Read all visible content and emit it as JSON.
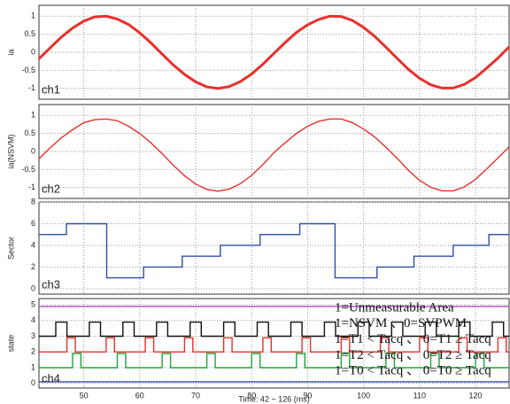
{
  "chart_data": [
    {
      "type": "line",
      "ylabel": "ia",
      "annotation": "ch1",
      "xlim": [
        42,
        126
      ],
      "xticks": [
        50,
        60,
        70,
        80,
        90,
        100,
        110,
        120
      ],
      "ylim": [
        -1.3,
        1.3
      ],
      "yticks": [
        -1,
        -0.5,
        0,
        0.5,
        1
      ],
      "grid": true,
      "x": [
        42,
        44,
        46,
        48,
        50,
        52,
        54,
        56,
        58,
        60,
        62,
        64,
        66,
        68,
        70,
        72,
        74,
        76,
        78,
        80,
        82,
        84,
        86,
        88,
        90,
        92,
        94,
        96,
        98,
        100,
        102,
        104,
        106,
        108,
        110,
        112,
        114,
        116,
        118,
        120,
        122,
        124,
        126
      ],
      "series": [
        {
          "color": "#e8302c",
          "values": [
            -0.18,
            0.12,
            0.42,
            0.67,
            0.86,
            0.98,
            1.0,
            0.92,
            0.77,
            0.54,
            0.26,
            -0.05,
            -0.35,
            -0.61,
            -0.82,
            -0.96,
            -1.0,
            -0.95,
            -0.81,
            -0.6,
            -0.33,
            -0.03,
            0.27,
            0.55,
            0.76,
            0.91,
            1.0,
            0.99,
            0.88,
            0.69,
            0.44,
            0.14,
            -0.17,
            -0.47,
            -0.72,
            -0.9,
            -0.99,
            -0.99,
            -0.89,
            -0.7,
            -0.44,
            -0.16,
            0.15
          ]
        }
      ]
    },
    {
      "type": "line",
      "ylabel": "ia(NSVM)",
      "annotation": "ch2",
      "xlim": [
        42,
        126
      ],
      "xticks": [
        50,
        60,
        70,
        80,
        90,
        100,
        110,
        120
      ],
      "ylim": [
        -1.3,
        1.3
      ],
      "yticks": [
        -1,
        -0.5,
        0,
        0.5,
        1
      ],
      "grid": true,
      "x": [
        42,
        44,
        46,
        48,
        50,
        52,
        54,
        56,
        58,
        60,
        62,
        64,
        66,
        68,
        70,
        72,
        74,
        76,
        78,
        80,
        82,
        84,
        86,
        88,
        90,
        92,
        94,
        96,
        98,
        100,
        102,
        104,
        106,
        108,
        110,
        112,
        114,
        116,
        118,
        120,
        122,
        124,
        126
      ],
      "series": [
        {
          "color": "#e8302c",
          "values": [
            -0.2,
            0.1,
            0.38,
            0.6,
            0.8,
            0.88,
            0.9,
            0.85,
            0.7,
            0.5,
            0.24,
            -0.06,
            -0.38,
            -0.67,
            -0.9,
            -1.05,
            -1.1,
            -1.04,
            -0.89,
            -0.66,
            -0.36,
            -0.03,
            0.24,
            0.5,
            0.7,
            0.84,
            0.9,
            0.9,
            0.8,
            0.62,
            0.4,
            0.12,
            -0.19,
            -0.52,
            -0.8,
            -0.99,
            -1.09,
            -1.09,
            -0.98,
            -0.77,
            -0.48,
            -0.18,
            0.13
          ]
        }
      ]
    },
    {
      "type": "line",
      "ylabel": "Sector",
      "annotation": "ch3",
      "xlim": [
        42,
        126
      ],
      "xticks": [
        50,
        60,
        70,
        80,
        90,
        100,
        110,
        120
      ],
      "ylim": [
        -0.5,
        8
      ],
      "yticks": [
        0,
        2,
        4,
        6,
        8
      ],
      "grid": true,
      "x": [
        42,
        46.9,
        46.9,
        54.1,
        54.1,
        60.7,
        60.7,
        67.6,
        67.6,
        74.4,
        74.4,
        81.5,
        81.5,
        88.6,
        88.6,
        94.9,
        94.9,
        102.4,
        102.4,
        109,
        109,
        116,
        116,
        122.4,
        122.4,
        126
      ],
      "series": [
        {
          "color": "#2f4fa8",
          "values": [
            5,
            5,
            6,
            6,
            1,
            1,
            2,
            2,
            3,
            3,
            4,
            4,
            5,
            5,
            6,
            6,
            1,
            1,
            2,
            2,
            3,
            3,
            4,
            4,
            5,
            5
          ]
        }
      ]
    },
    {
      "type": "line",
      "ylabel": "state",
      "annotation": "ch4",
      "xlim": [
        42,
        126
      ],
      "xticks": [
        50,
        60,
        70,
        80,
        90,
        100,
        110,
        120
      ],
      "ylim": [
        -0.3,
        5.4
      ],
      "yticks": [
        0,
        1,
        2,
        3,
        4,
        5
      ],
      "grid": true,
      "xlabel": "Time: 42 ~ 126 (ms)",
      "notes": [
        "1=Unmeasurable Area",
        "1=NSVM 、0=SVPWM",
        "1=T1 < Tacq 、 0=T1 ≥ Tacq",
        "1=T2 < Tacq 、 0=T2 ≥ Tacq",
        "1=T0 < Tacq 、 0=T0 ≥ Tacq"
      ],
      "series": [
        {
          "color": "#b14fc4",
          "x": [
            42,
            126
          ],
          "values": [
            4.9,
            4.9
          ]
        },
        {
          "color": "#111111",
          "x": [
            42,
            45,
            45,
            47,
            47,
            51,
            51,
            53,
            53,
            57,
            57,
            59,
            59,
            63,
            63,
            65,
            65,
            69,
            69,
            71,
            71,
            75,
            75,
            77,
            77,
            81,
            81,
            83,
            83,
            87,
            87,
            89,
            89,
            93,
            93,
            95,
            95,
            99,
            99,
            101,
            101,
            105,
            105,
            107,
            107,
            111,
            111,
            113,
            113,
            117,
            117,
            119,
            119,
            123,
            123,
            125,
            125,
            126
          ],
          "values": [
            3,
            3,
            3.9,
            3.9,
            3,
            3,
            3.9,
            3.9,
            3,
            3,
            3.9,
            3.9,
            3,
            3,
            3.9,
            3.9,
            3,
            3,
            3.9,
            3.9,
            3,
            3,
            3.9,
            3.9,
            3,
            3,
            3.9,
            3.9,
            3,
            3,
            3.9,
            3.9,
            3,
            3,
            3.9,
            3.9,
            3,
            3,
            3.9,
            3.9,
            3,
            3,
            3.9,
            3.9,
            3,
            3,
            3.9,
            3.9,
            3,
            3,
            3.9,
            3.9,
            3,
            3,
            3.9,
            3.9,
            3,
            3
          ]
        },
        {
          "color": "#e8302c",
          "x": [
            42,
            47,
            47,
            48.5,
            48.5,
            54,
            54,
            55.5,
            55.5,
            61,
            61,
            62.5,
            62.5,
            68,
            68,
            69.5,
            69.5,
            75,
            75,
            76.5,
            76.5,
            82,
            82,
            83.5,
            83.5,
            89,
            89,
            90.5,
            90.5,
            96,
            96,
            97.5,
            97.5,
            103,
            103,
            104.5,
            104.5,
            110,
            110,
            111.5,
            111.5,
            117,
            117,
            118.5,
            118.5,
            124,
            124,
            125.5,
            125.5,
            126
          ],
          "values": [
            2,
            2,
            2.9,
            2.9,
            2,
            2,
            2.9,
            2.9,
            2,
            2,
            2.9,
            2.9,
            2,
            2,
            2.9,
            2.9,
            2,
            2,
            2.9,
            2.9,
            2,
            2,
            2.9,
            2.9,
            2,
            2,
            2.9,
            2.9,
            2,
            2,
            2.9,
            2.9,
            2,
            2,
            2.9,
            2.9,
            2,
            2,
            2.9,
            2.9,
            2,
            2,
            2.9,
            2.9,
            2,
            2,
            2.9,
            2.9,
            2,
            2
          ]
        },
        {
          "color": "#22a33a",
          "x": [
            42,
            48,
            48,
            49.5,
            49.5,
            56,
            56,
            57.5,
            57.5,
            64,
            64,
            65.5,
            65.5,
            72,
            72,
            73.5,
            73.5,
            80,
            80,
            81.5,
            81.5,
            88,
            88,
            89.5,
            89.5,
            96,
            96,
            97.5,
            97.5,
            104,
            104,
            105.5,
            105.5,
            112,
            112,
            113.5,
            113.5,
            120,
            120,
            121.5,
            121.5,
            126
          ],
          "values": [
            1,
            1,
            1.9,
            1.9,
            1,
            1,
            1.9,
            1.9,
            1,
            1,
            1.9,
            1.9,
            1,
            1,
            1.9,
            1.9,
            1,
            1,
            1.9,
            1.9,
            1,
            1,
            1.9,
            1.9,
            1,
            1,
            1.9,
            1.9,
            1,
            1,
            1.9,
            1.9,
            1,
            1,
            1.9,
            1.9,
            1,
            1,
            1.9,
            1.9,
            1,
            1
          ]
        },
        {
          "color": "#2f4fa8",
          "x": [
            42,
            126
          ],
          "values": [
            0.1,
            0.1
          ]
        }
      ]
    }
  ]
}
